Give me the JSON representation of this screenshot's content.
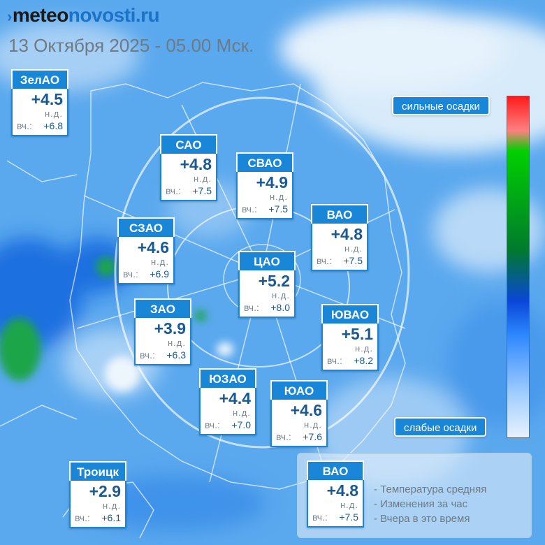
{
  "brand": {
    "mark": "›",
    "part1": "meteo",
    "part2": "novosti.ru"
  },
  "datetime": "13 Октября 2025 - 05.00 Мск.",
  "districts": [
    {
      "name": "ЗелАО",
      "temp": "+4.5",
      "change": "н.д.",
      "yest_label": "вч.:",
      "yest": "+6.8"
    },
    {
      "name": "САО",
      "temp": "+4.8",
      "change": "н.д.",
      "yest_label": "вч.:",
      "yest": "+7.5"
    },
    {
      "name": "СВАО",
      "temp": "+4.9",
      "change": "н.д.",
      "yest_label": "вч.:",
      "yest": "+7.5"
    },
    {
      "name": "ВАО",
      "temp": "+4.8",
      "change": "н.д.",
      "yest_label": "вч.:",
      "yest": "+7.5"
    },
    {
      "name": "СЗАО",
      "temp": "+4.6",
      "change": "н.д.",
      "yest_label": "вч.:",
      "yest": "+6.9"
    },
    {
      "name": "ЦАО",
      "temp": "+5.2",
      "change": "н.д.",
      "yest_label": "вч.:",
      "yest": "+8.0"
    },
    {
      "name": "ЗАО",
      "temp": "+3.9",
      "change": "н.д.",
      "yest_label": "вч.:",
      "yest": "+6.3"
    },
    {
      "name": "ЮВАО",
      "temp": "+5.1",
      "change": "н.д.",
      "yest_label": "вч.:",
      "yest": "+8.2"
    },
    {
      "name": "ЮЗАО",
      "temp": "+4.4",
      "change": "н.д.",
      "yest_label": "вч.:",
      "yest": "+7.0"
    },
    {
      "name": "ЮАО",
      "temp": "+4.6",
      "change": "н.д.",
      "yest_label": "вч.:",
      "yest": "+7.6"
    },
    {
      "name": "Троицк",
      "temp": "+2.9",
      "change": "н.д.",
      "yest_label": "вч.:",
      "yest": "+6.1"
    }
  ],
  "scale": {
    "top_label": "сильные осадки",
    "bottom_label": "слабые осадки"
  },
  "legend": {
    "sample": {
      "name": "ВАО",
      "temp": "+4.8",
      "change": "н.д.",
      "yest_label": "вч.:",
      "yest": "+7.5"
    },
    "line1": "- Температура средняя",
    "line2": "- Изменения за час",
    "line3": "- Вчера в это время"
  }
}
